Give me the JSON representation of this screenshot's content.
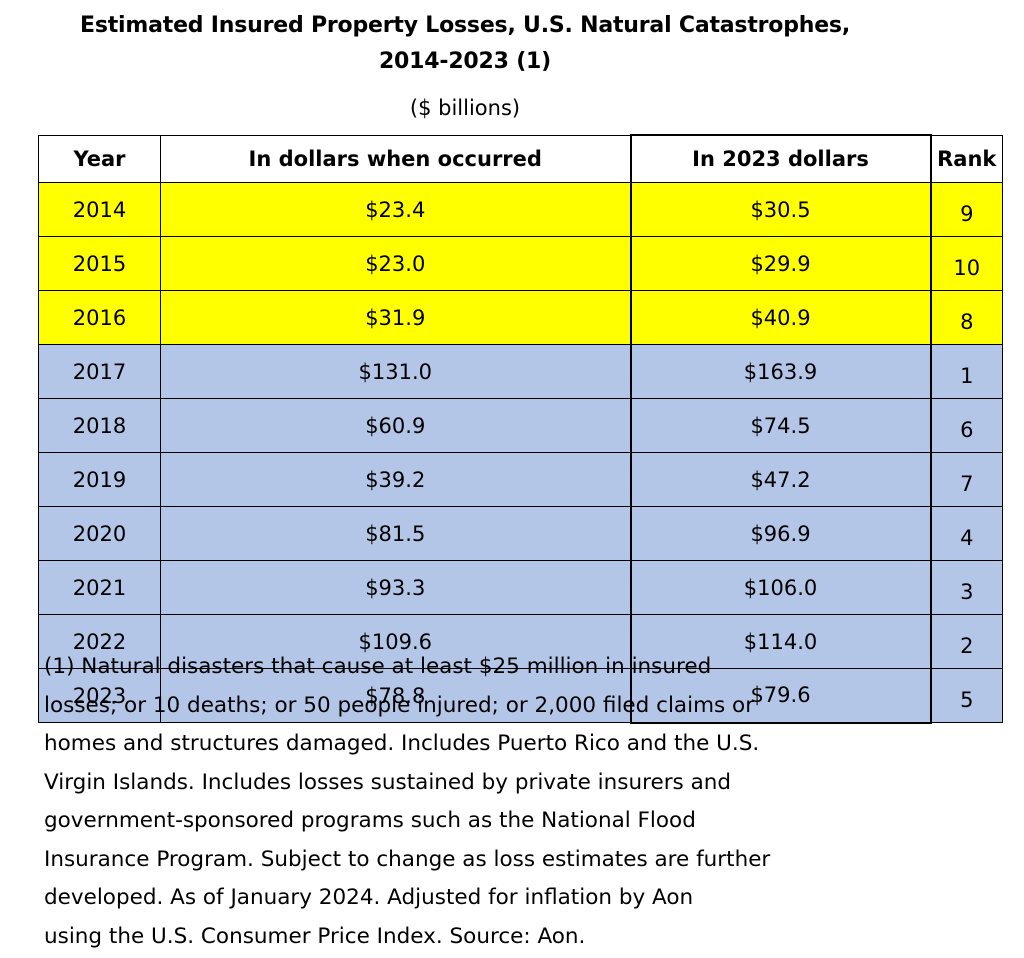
{
  "title_line1": "Estimated Insured Property Losses, U.S. Natural Catastrophes,",
  "title_line2": "2014-2023 (1)",
  "subtitle": "($ billions)",
  "colors": {
    "highlight_yellow": "#ffff00",
    "row_blue": "#b4c6e7"
  },
  "chart_data": {
    "type": "table",
    "columns": [
      "Year",
      "In dollars when occurred",
      "In 2023 dollars",
      "Rank"
    ],
    "rows": [
      {
        "year": "2014",
        "occurred": "$23.4",
        "adjusted": "$30.5",
        "rank": "9",
        "highlight": "yellow"
      },
      {
        "year": "2015",
        "occurred": "$23.0",
        "adjusted": "$29.9",
        "rank": "10",
        "highlight": "yellow"
      },
      {
        "year": "2016",
        "occurred": "$31.9",
        "adjusted": "$40.9",
        "rank": "8",
        "highlight": "yellow"
      },
      {
        "year": "2017",
        "occurred": "$131.0",
        "adjusted": "$163.9",
        "rank": "1",
        "highlight": "blue"
      },
      {
        "year": "2018",
        "occurred": "$60.9",
        "adjusted": "$74.5",
        "rank": "6",
        "highlight": "blue"
      },
      {
        "year": "2019",
        "occurred": "$39.2",
        "adjusted": "$47.2",
        "rank": "7",
        "highlight": "blue"
      },
      {
        "year": "2020",
        "occurred": "$81.5",
        "adjusted": "$96.9",
        "rank": "4",
        "highlight": "blue"
      },
      {
        "year": "2021",
        "occurred": "$93.3",
        "adjusted": "$106.0",
        "rank": "3",
        "highlight": "blue"
      },
      {
        "year": "2022",
        "occurred": "$109.6",
        "adjusted": "$114.0",
        "rank": "2",
        "highlight": "blue"
      },
      {
        "year": "2023",
        "occurred": "$78.8",
        "adjusted": "$79.6",
        "rank": "5",
        "highlight": "blue"
      }
    ]
  },
  "footnote": "(1) Natural disasters that cause at least $25 million in insured\nlosses; or 10 deaths; or 50 people injured; or 2,000 filed claims or\nhomes and structures damaged. Includes Puerto Rico and the U.S.\nVirgin Islands. Includes losses sustained by private insurers and\ngovernment-sponsored programs such as the National Flood\nInsurance Program. Subject to change as loss estimates are further\ndeveloped. As of January 2024. Adjusted for inflation by Aon\nusing the U.S. Consumer Price Index. Source: Aon."
}
